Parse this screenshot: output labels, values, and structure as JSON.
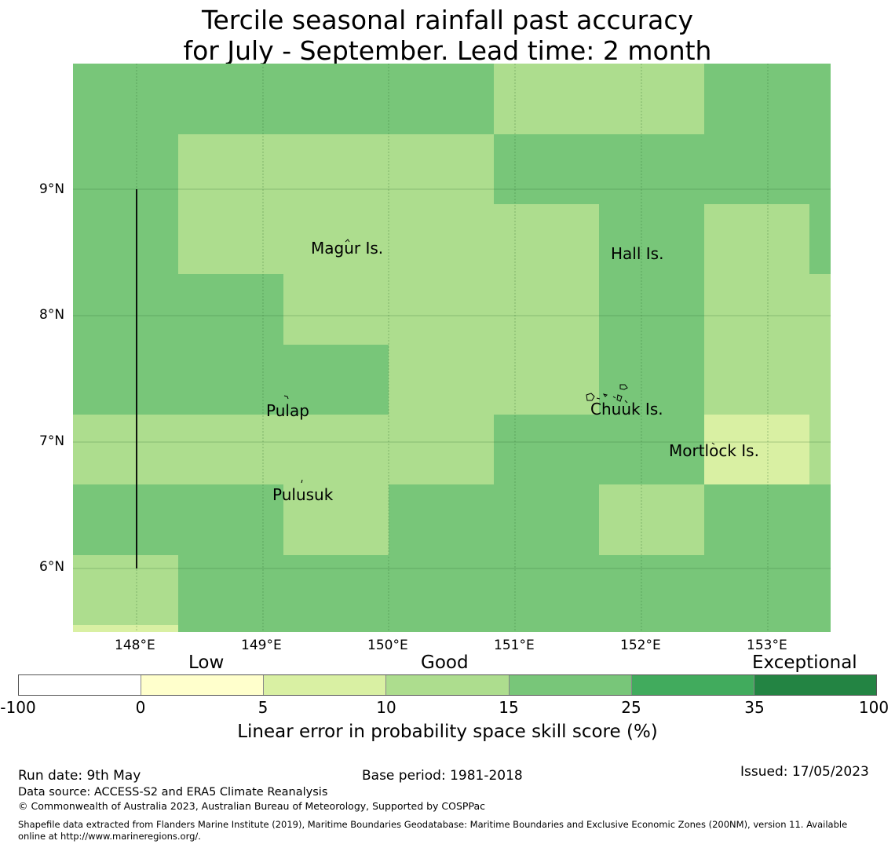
{
  "title": {
    "line1": "Tercile seasonal rainfall past accuracy",
    "line2": "for July - September. Lead time: 2 month"
  },
  "map": {
    "lat_labels": [
      "9°N",
      "8°N",
      "7°N",
      "6°N"
    ],
    "lon_labels": [
      "148°E",
      "149°E",
      "150°E",
      "151°E",
      "152°E",
      "153°E"
    ],
    "places": [
      {
        "name": "Magur Is."
      },
      {
        "name": "Hall Is."
      },
      {
        "name": "Pulap"
      },
      {
        "name": "Chuuk Is."
      },
      {
        "name": "Mortlock Is."
      },
      {
        "name": "Pulusuk"
      }
    ]
  },
  "colorbar": {
    "category_labels": [
      "Low",
      "Good",
      "Exceptional"
    ],
    "ticks": [
      "-100",
      "0",
      "5",
      "10",
      "15",
      "25",
      "35",
      "100"
    ],
    "colors": [
      "#ffffff",
      "#ffffcc",
      "#d9f0a3",
      "#addd8e",
      "#78c679",
      "#41ab5d",
      "#238443"
    ],
    "label": "Linear error in probability space skill score (%)"
  },
  "footer": {
    "run_date": "Run date: 9th May",
    "base_period": "Base period: 1981-2018",
    "issued": "Issued: 17/05/2023",
    "data_source": "Data source: ACCESS-S2 and ERA5 Climate Reanalysis",
    "copyright": "© Commonwealth of Australia 2023, Australian Bureau of Meteorology, Supported by COSPPac",
    "shapefile_line1": "Shapefile data extracted from Flanders Marine Institute (2019), Maritime Boundaries Geodatabase: Maritime Boundaries and Exclusive Economic Zones (200NM), version 11. Available",
    "shapefile_line2": "online at http://www.marineregions.org/."
  }
}
